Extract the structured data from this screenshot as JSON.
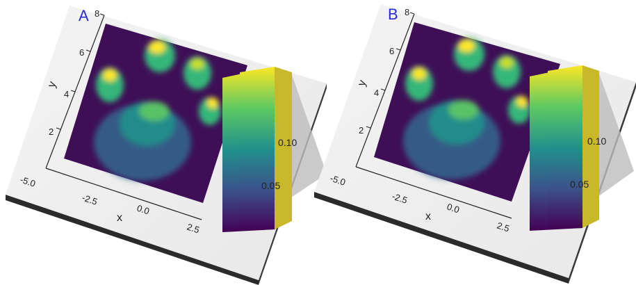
{
  "chart_data": [
    {
      "panel_label": "A",
      "type": "heatmap",
      "xlabel": "x",
      "ylabel": "y",
      "x_ticks": [
        "-5.0",
        "-2.5",
        "0.0",
        "2.5"
      ],
      "y_ticks": [
        "2",
        "4",
        "6",
        "8"
      ],
      "xlim": [
        -5.0,
        2.5
      ],
      "ylim": [
        0,
        8
      ],
      "colormap": "viridis",
      "colorbar_ticks": [
        "0.05",
        "0.10"
      ],
      "colorbar_range": [
        0.0,
        0.13
      ],
      "surface": "paw-print density: one large lobe and four toe peaks",
      "peaks": [
        {
          "x": -2.5,
          "y": 4.6,
          "value": 0.12
        },
        {
          "x": -1.0,
          "y": 6.6,
          "value": 0.13
        },
        {
          "x": 1.0,
          "y": 6.1,
          "value": 0.12
        },
        {
          "x": 2.2,
          "y": 3.8,
          "value": 0.12
        },
        {
          "x": 0.2,
          "y": 2.5,
          "value": 0.1
        }
      ]
    },
    {
      "panel_label": "B",
      "type": "heatmap",
      "xlabel": "x",
      "ylabel": "y",
      "x_ticks": [
        "-5.0",
        "-2.5",
        "0.0",
        "2.5"
      ],
      "y_ticks": [
        "2",
        "4",
        "6",
        "8"
      ],
      "xlim": [
        -5.0,
        2.5
      ],
      "ylim": [
        0,
        8
      ],
      "colormap": "viridis",
      "colorbar_ticks": [
        "0.05",
        "0.10"
      ],
      "colorbar_range": [
        0.0,
        0.13
      ],
      "surface": "paw-print density: one large lobe and four toe peaks",
      "peaks": [
        {
          "x": -2.5,
          "y": 4.6,
          "value": 0.12
        },
        {
          "x": -1.0,
          "y": 6.6,
          "value": 0.13
        },
        {
          "x": 1.0,
          "y": 6.1,
          "value": 0.12
        },
        {
          "x": 2.2,
          "y": 3.8,
          "value": 0.12
        },
        {
          "x": 0.2,
          "y": 2.5,
          "value": 0.1
        }
      ]
    }
  ]
}
